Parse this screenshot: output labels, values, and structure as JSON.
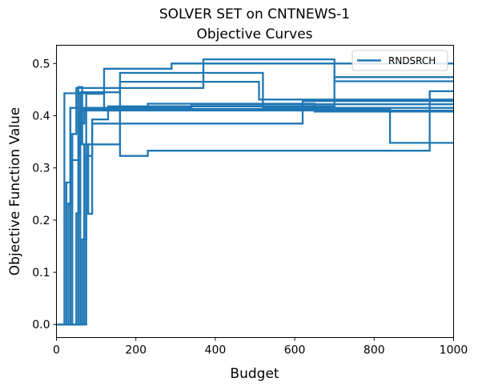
{
  "chart_data": {
    "type": "line",
    "title": "SOLVER SET on CNTNEWS-1",
    "subtitle": "Objective Curves",
    "xlabel": "Budget",
    "ylabel": "Objective Function Value",
    "xlim": [
      0,
      1000
    ],
    "ylim": [
      -0.025,
      0.535
    ],
    "xticks": [
      0,
      200,
      400,
      600,
      800,
      1000
    ],
    "yticks": [
      0.0,
      0.1,
      0.2,
      0.3,
      0.4,
      0.5
    ],
    "xtick_labels": [
      "0",
      "200",
      "400",
      "600",
      "800",
      "1000"
    ],
    "ytick_labels": [
      "0.0",
      "0.1",
      "0.2",
      "0.3",
      "0.4",
      "0.5"
    ],
    "grid": false,
    "legend": {
      "placement": "top-right",
      "entries": [
        "RNDSRCH"
      ]
    },
    "color": "#1f77b4",
    "series": [
      {
        "name": "RNDSRCH",
        "x": [
          0,
          20,
          20,
          120,
          120,
          290,
          290,
          1000
        ],
        "y": [
          0.0,
          0.0,
          0.443,
          0.443,
          0.49,
          0.49,
          0.5,
          0.5
        ]
      },
      {
        "x": [
          0,
          25,
          25,
          35,
          35,
          340,
          340,
          1000
        ],
        "y": [
          0.0,
          0.0,
          0.272,
          0.272,
          0.415,
          0.415,
          0.422,
          0.422
        ]
      },
      {
        "x": [
          0,
          30,
          30,
          40,
          40,
          50,
          50,
          370,
          370,
          700,
          700,
          1000
        ],
        "y": [
          0.0,
          0.0,
          0.232,
          0.232,
          0.365,
          0.365,
          0.453,
          0.453,
          0.508,
          0.508,
          0.466,
          0.466
        ]
      },
      {
        "x": [
          0,
          40,
          40,
          60,
          60,
          160,
          160,
          520,
          520,
          1000
        ],
        "y": [
          0.0,
          0.0,
          0.315,
          0.315,
          0.445,
          0.445,
          0.482,
          0.482,
          0.415,
          0.415
        ]
      },
      {
        "x": [
          0,
          50,
          50,
          60,
          60,
          70,
          70,
          840,
          840,
          1000
        ],
        "y": [
          0.0,
          0.0,
          0.213,
          0.213,
          0.385,
          0.385,
          0.413,
          0.413,
          0.348,
          0.348
        ]
      },
      {
        "x": [
          0,
          55,
          55,
          65,
          65,
          160,
          160,
          510,
          510,
          1000
        ],
        "y": [
          0.0,
          0.0,
          0.455,
          0.455,
          0.345,
          0.345,
          0.465,
          0.465,
          0.431,
          0.431
        ]
      },
      {
        "x": [
          0,
          65,
          65,
          75,
          75,
          90,
          90,
          130,
          130,
          620,
          620,
          1000
        ],
        "y": [
          0.0,
          0.0,
          0.163,
          0.163,
          0.323,
          0.323,
          0.393,
          0.393,
          0.41,
          0.41,
          0.428,
          0.428
        ]
      },
      {
        "x": [
          0,
          70,
          70,
          80,
          80,
          90,
          90,
          120,
          120,
          620,
          620,
          1000
        ],
        "y": [
          0.0,
          0.0,
          0.345,
          0.345,
          0.212,
          0.212,
          0.385,
          0.385,
          0.385,
          0.385,
          0.41,
          0.41
        ]
      },
      {
        "x": [
          0,
          75,
          75,
          120,
          120,
          230,
          230,
          650,
          650,
          1000
        ],
        "y": [
          0.0,
          0.0,
          0.442,
          0.442,
          0.413,
          0.413,
          0.423,
          0.423,
          0.408,
          0.408
        ]
      },
      {
        "x": [
          0,
          60,
          60,
          160,
          160,
          230,
          230,
          940,
          940,
          1000
        ],
        "y": [
          0.0,
          0.0,
          0.41,
          0.41,
          0.323,
          0.323,
          0.333,
          0.333,
          0.447,
          0.447
        ]
      },
      {
        "x": [
          0,
          35,
          35,
          130,
          130,
          700,
          700,
          1000
        ],
        "y": [
          0.0,
          0.0,
          0.415,
          0.415,
          0.418,
          0.418,
          0.474,
          0.474
        ]
      }
    ]
  }
}
